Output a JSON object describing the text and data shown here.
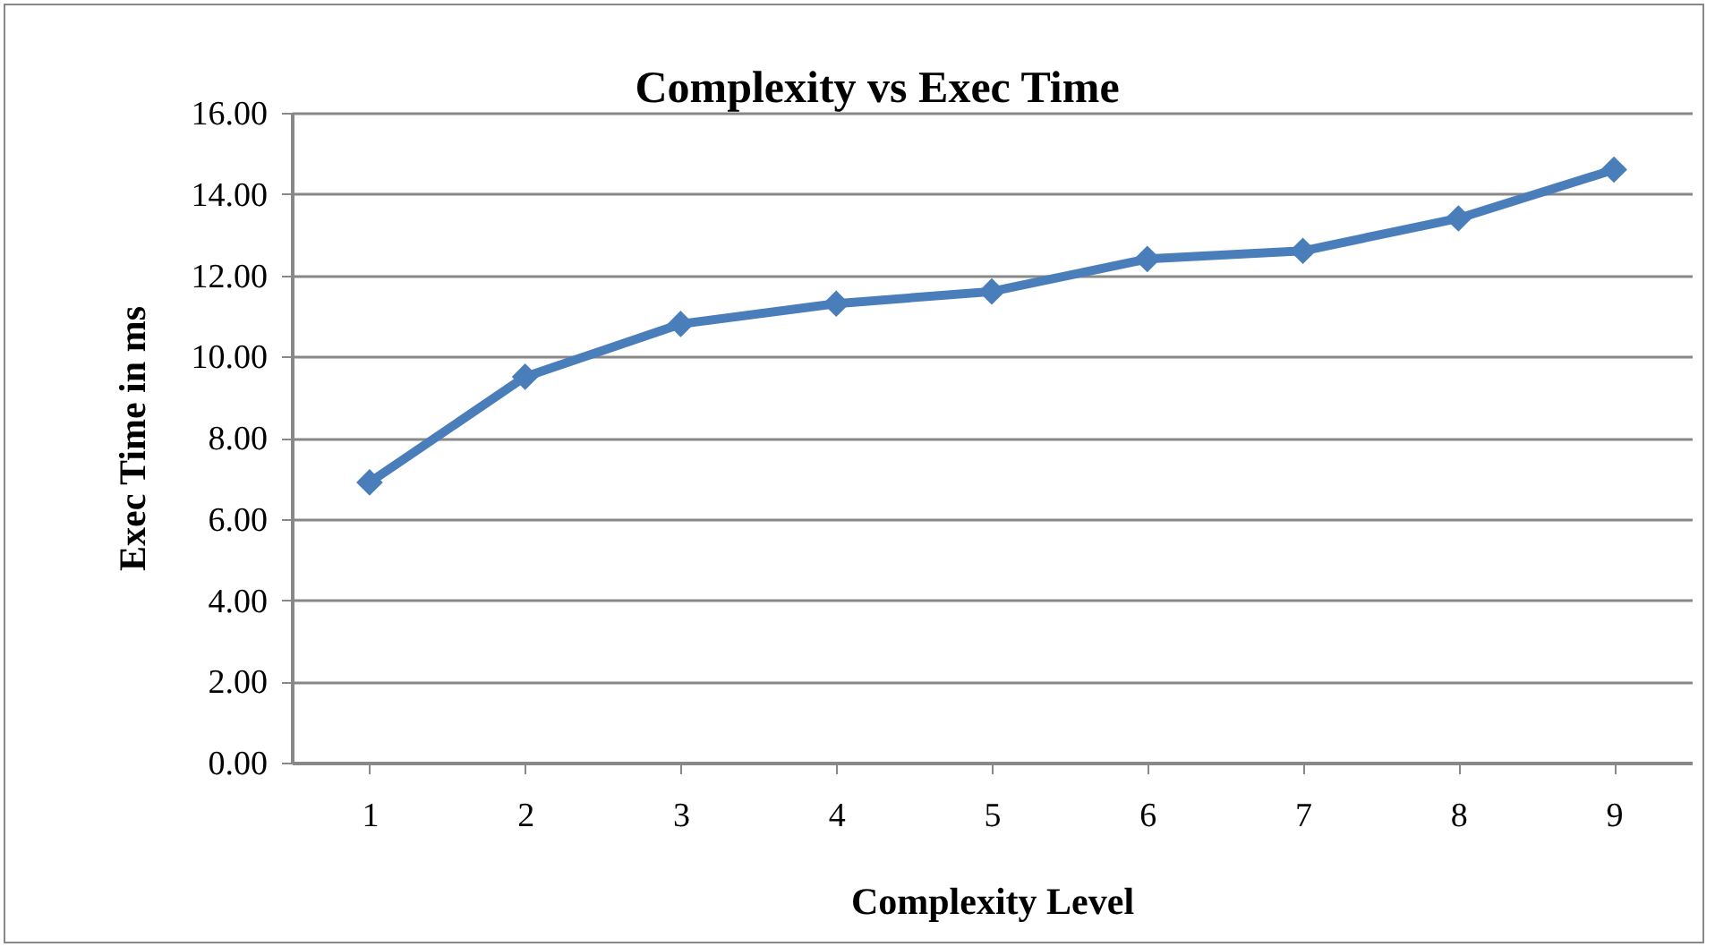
{
  "chart_data": {
    "type": "line",
    "title": "Complexity vs Exec Time",
    "xlabel": "Complexity Level",
    "ylabel": "Exec Time in ms",
    "categories": [
      "1",
      "2",
      "3",
      "4",
      "5",
      "6",
      "7",
      "8",
      "9"
    ],
    "series": [
      {
        "color": "#4a7ebb",
        "values": [
          6.9,
          9.5,
          10.8,
          11.3,
          11.6,
          12.4,
          12.6,
          13.4,
          14.6
        ]
      }
    ],
    "ylim": [
      0,
      16
    ],
    "yticks": [
      {
        "value": 0,
        "label": "0.00"
      },
      {
        "value": 2,
        "label": "2.00"
      },
      {
        "value": 4,
        "label": "4.00"
      },
      {
        "value": 6,
        "label": "6.00"
      },
      {
        "value": 8,
        "label": "8.00"
      },
      {
        "value": 10,
        "label": "10.00"
      },
      {
        "value": 12,
        "label": "12.00"
      },
      {
        "value": 14,
        "label": "14.00"
      },
      {
        "value": 16,
        "label": "16.00"
      }
    ],
    "grid": "y",
    "marker": "diamond",
    "line_style": "solid"
  }
}
